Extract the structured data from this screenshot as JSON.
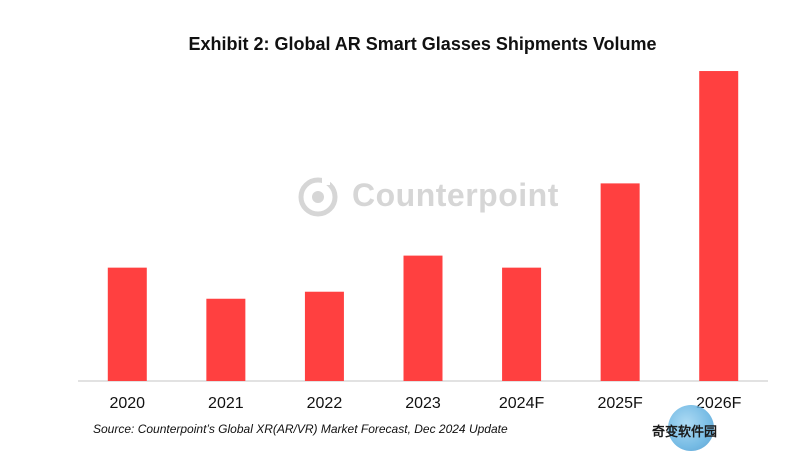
{
  "title": "Exhibit 2: Global AR Smart Glasses Shipments Volume",
  "source": "Source: Counterpoint’s Global XR(AR/VR) Market Forecast, Dec 2024 Update",
  "watermark": "Counterpoint",
  "badge": "奇变软件园",
  "colors": {
    "bar": "#ff4040",
    "axis": "#d9d9d9",
    "text": "#111111"
  },
  "chart_data": {
    "type": "bar",
    "categories": [
      "2020",
      "2021",
      "2022",
      "2023",
      "2024F",
      "2025F",
      "2026F"
    ],
    "values": [
      113,
      82,
      89,
      125,
      113,
      197,
      309
    ],
    "title": "Exhibit 2: Global AR Smart Glasses Shipments Volume",
    "xlabel": "",
    "ylabel": "",
    "ylim": [
      0,
      320
    ],
    "grid": false,
    "legend": "none"
  }
}
